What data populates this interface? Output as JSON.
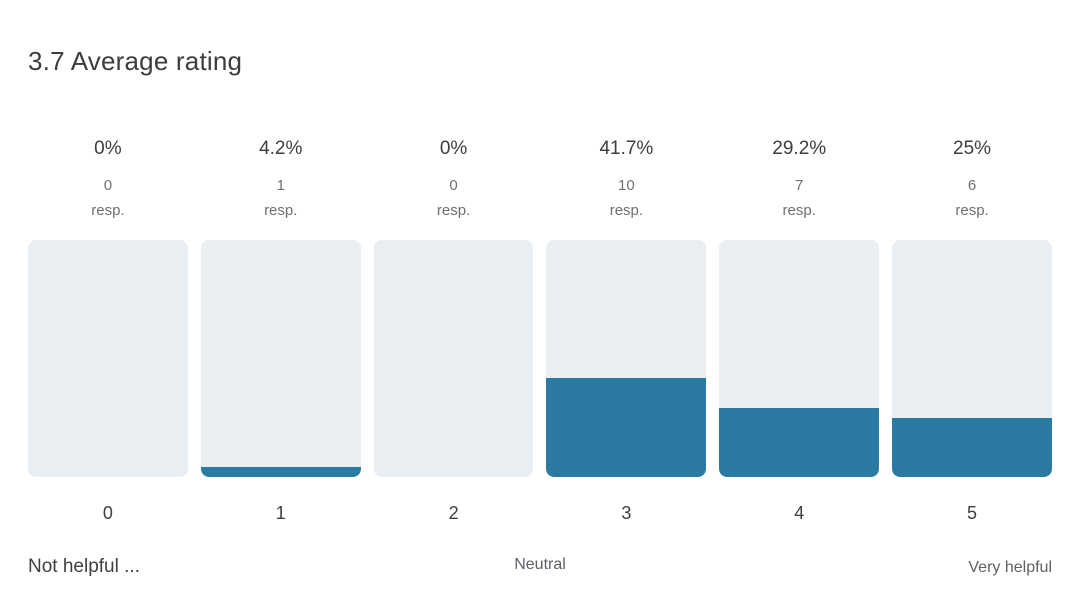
{
  "header": {
    "title": "3.7 Average rating"
  },
  "colors": {
    "bar_fill": "#2a7aa2",
    "bar_track": "#e8eef2",
    "text_dark": "#3d3d3d",
    "text_gray": "#6f6f6f"
  },
  "chart_data": {
    "type": "bar",
    "title": "3.7 Average rating",
    "categories": [
      "0",
      "1",
      "2",
      "3",
      "4",
      "5"
    ],
    "values_pct": [
      0,
      4.2,
      0,
      41.7,
      29.2,
      25
    ],
    "pct_labels": [
      "0%",
      "4.2%",
      "0%",
      "41.7%",
      "29.2%",
      "25%"
    ],
    "responses": [
      "0",
      "1",
      "0",
      "10",
      "7",
      "6"
    ],
    "resp_suffix": "resp.",
    "ylim": [
      0,
      100
    ],
    "legend": "none",
    "grid": "off",
    "axis_anchor_labels": {
      "left": "Not helpful ...",
      "center": "Neutral",
      "right": "Very helpful"
    }
  }
}
